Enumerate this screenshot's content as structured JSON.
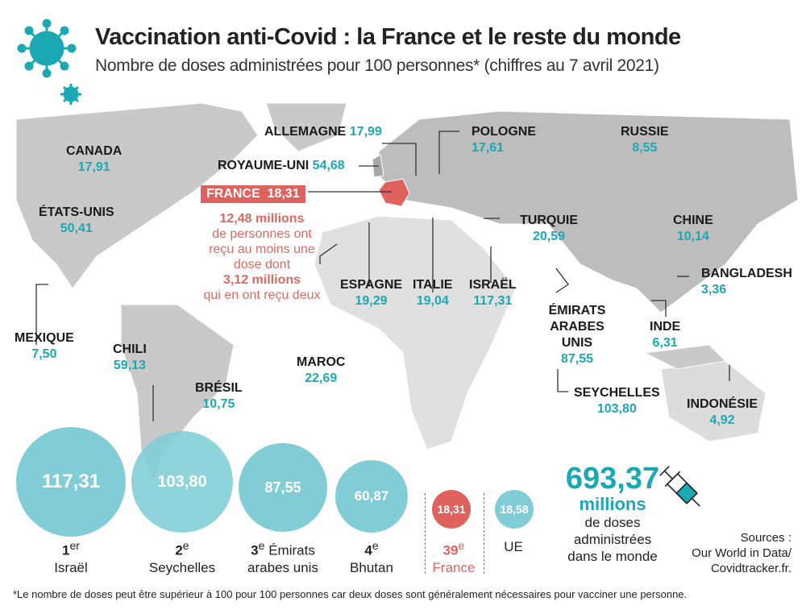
{
  "title": "Vaccination anti-Covid : la France et le reste du monde",
  "subtitle": "Nombre de doses administrées pour 100 personnes* (chiffres au 7 avril 2021)",
  "colors": {
    "teal": "#1ba8b5",
    "circle": "#80cdd6",
    "france": "#e0625e",
    "land": "#c9c9c9"
  },
  "countries": [
    {
      "name": "CANADA",
      "value": "17,91"
    },
    {
      "name": "ÉTATS-UNIS",
      "value": "50,41"
    },
    {
      "name": "MEXIQUE",
      "value": "7,50"
    },
    {
      "name": "CHILI",
      "value": "59,13"
    },
    {
      "name": "BRÉSIL",
      "value": "10,75"
    },
    {
      "name": "ALLEMAGNE",
      "value": "17,99"
    },
    {
      "name": "ROYAUME-UNI",
      "value": "54,68"
    },
    {
      "name": "POLOGNE",
      "value": "17,61"
    },
    {
      "name": "RUSSIE",
      "value": "8,55"
    },
    {
      "name": "TURQUIE",
      "value": "20,59"
    },
    {
      "name": "CHINE",
      "value": "10,14"
    },
    {
      "name": "BANGLADESH",
      "value": "3,36"
    },
    {
      "name": "ESPAGNE",
      "value": "19,29"
    },
    {
      "name": "ITALIE",
      "value": "19,04"
    },
    {
      "name": "ISRAËL",
      "value": "117,31"
    },
    {
      "name": "ÉMIRATS ARABES UNIS",
      "value": "87,55"
    },
    {
      "name": "INDE",
      "value": "6,31"
    },
    {
      "name": "MAROC",
      "value": "22,69"
    },
    {
      "name": "SEYCHELLES",
      "value": "103,80"
    },
    {
      "name": "INDONÉSIE",
      "value": "4,92"
    }
  ],
  "france": {
    "name": "FRANCE",
    "value": "18,31",
    "note1": "12,48 millions",
    "note2": "de personnes ont reçu au moins une dose dont",
    "note3": "3,12 millions",
    "note4": "qui en ont reçu deux"
  },
  "ranking": [
    {
      "value": "117,31",
      "rank": "1",
      "sup": "er",
      "country": "Israël"
    },
    {
      "value": "103,80",
      "rank": "2",
      "sup": "e",
      "country": "Seychelles"
    },
    {
      "value": "87,55",
      "rank": "3",
      "sup": "e",
      "country": "Émirats arabes unis"
    },
    {
      "value": "60,87",
      "rank": "4",
      "sup": "e",
      "country": "Bhutan"
    },
    {
      "value": "18,31",
      "rank": "39",
      "sup": "e",
      "country": "France"
    },
    {
      "value": "18,58",
      "rank": "",
      "sup": "",
      "country": "UE"
    }
  ],
  "world": {
    "value": "693,37",
    "unit": "millions",
    "text": "de doses administrées dans le monde"
  },
  "sources": {
    "label": "Sources :",
    "text1": "Our World in Data/",
    "text2": "Covidtracker.fr."
  },
  "footnote": "*Le nombre de doses peut être supérieur à 100 pour 100 personnes car deux doses sont généralement nécessaires pour vacciner une personne."
}
